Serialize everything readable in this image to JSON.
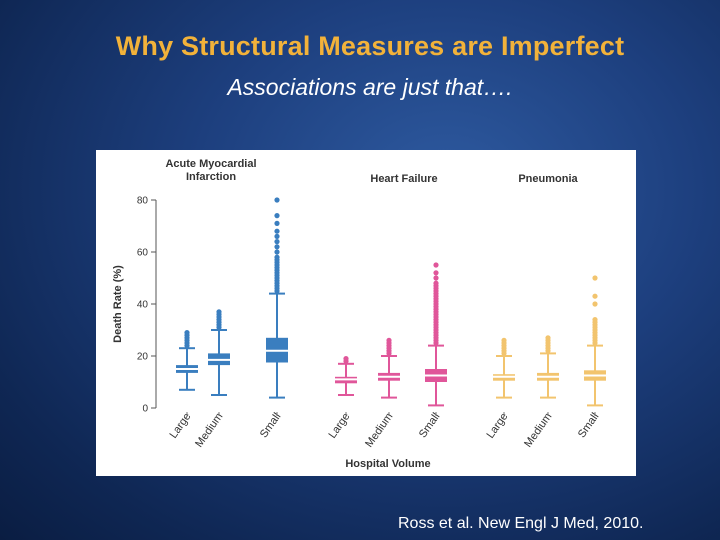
{
  "slide": {
    "title": "Why Structural Measures are Imperfect",
    "subtitle": "Associations are just that….",
    "citation": "Ross et al. New Engl J Med, 2010."
  },
  "chart_data": {
    "type": "box",
    "ylabel": "Death Rate (%)",
    "xlabel": "Hospital Volume",
    "ylim": [
      0,
      80
    ],
    "yticks": [
      0,
      20,
      40,
      60,
      80
    ],
    "panels": [
      {
        "title_lines": [
          "Acute Myocardial",
          "Infarction"
        ],
        "color": "#3a7ebf",
        "groups": [
          {
            "category": "Large",
            "min": 7,
            "q1": 13.5,
            "median": 15,
            "q3": 16.5,
            "max": 23,
            "outliers": [
              24,
              25,
              26,
              27,
              28,
              29
            ]
          },
          {
            "category": "Medium",
            "min": 5,
            "q1": 16.5,
            "median": 18.5,
            "q3": 21,
            "max": 30,
            "outliers": [
              31,
              32,
              33,
              34,
              35,
              36,
              37
            ]
          },
          {
            "category": "Small",
            "min": 4,
            "q1": 17.5,
            "median": 22,
            "q3": 27,
            "max": 44,
            "outliers": [
              45,
              46,
              47,
              48,
              49,
              50,
              51,
              52,
              53,
              54,
              55,
              56,
              57,
              58,
              60,
              62,
              64,
              66,
              68,
              71,
              74,
              80
            ]
          }
        ]
      },
      {
        "title_lines": [
          "Heart Failure"
        ],
        "color": "#e0569a",
        "groups": [
          {
            "category": "Large",
            "min": 5,
            "q1": 9.5,
            "median": 11,
            "q3": 12,
            "max": 17,
            "outliers": [
              18,
              19
            ]
          },
          {
            "category": "Medium",
            "min": 4,
            "q1": 10.5,
            "median": 12,
            "q3": 13.5,
            "max": 20,
            "outliers": [
              21,
              22,
              23,
              24,
              25,
              26
            ]
          },
          {
            "category": "Small",
            "min": 1,
            "q1": 10,
            "median": 12.5,
            "q3": 15,
            "max": 24,
            "outliers": [
              25,
              26,
              27,
              28,
              29,
              30,
              31,
              32,
              33,
              34,
              35,
              36,
              37,
              38,
              39,
              40,
              41,
              42,
              43,
              44,
              45,
              46,
              47,
              48,
              50,
              52,
              55
            ]
          }
        ]
      },
      {
        "title_lines": [
          "Pneumonia"
        ],
        "color": "#f2c46e",
        "groups": [
          {
            "category": "Large",
            "min": 4,
            "q1": 10.5,
            "median": 12,
            "q3": 13,
            "max": 20,
            "outliers": [
              21,
              22,
              23,
              24,
              25,
              26
            ]
          },
          {
            "category": "Medium",
            "min": 4,
            "q1": 10.5,
            "median": 12,
            "q3": 13.5,
            "max": 21,
            "outliers": [
              22,
              23,
              24,
              25,
              26,
              27
            ]
          },
          {
            "category": "Small",
            "min": 1,
            "q1": 10.5,
            "median": 12.5,
            "q3": 14.5,
            "max": 24,
            "outliers": [
              25,
              26,
              27,
              28,
              29,
              30,
              31,
              32,
              33,
              34,
              40,
              43,
              50
            ]
          }
        ]
      }
    ]
  }
}
